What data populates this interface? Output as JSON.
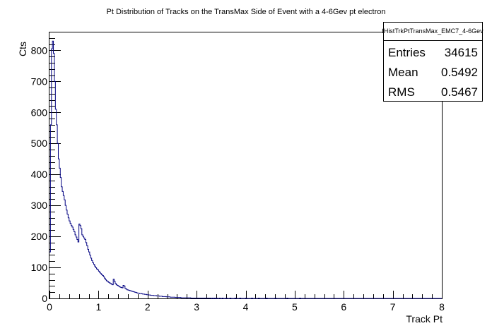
{
  "chart_data": {
    "type": "histogram",
    "title": "Pt Distribution of Tracks on the TransMax Side of Event with a 4-6Gev pt electron",
    "xlabel": "Track Pt",
    "ylabel": "Cts",
    "xlim": [
      0,
      8
    ],
    "ylim": [
      0,
      860
    ],
    "x_ticks": [
      "0",
      "1",
      "2",
      "3",
      "4",
      "5",
      "6",
      "7",
      "8"
    ],
    "y_ticks": [
      "0",
      "100",
      "200",
      "300",
      "400",
      "500",
      "600",
      "700",
      "800"
    ],
    "grid": false,
    "line_color": "#000080",
    "series": [
      {
        "name": "fHistTrkPtTransMax_EMC7_4-6Gev",
        "bin_width": 0.02,
        "x_start": 0.0,
        "values": [
          150,
          560,
          805,
          830,
          790,
          700,
          610,
          560,
          500,
          450,
          420,
          390,
          360,
          345,
          332,
          318,
          300,
          285,
          272,
          260,
          250,
          242,
          235,
          230,
          222,
          215,
          205,
          198,
          190,
          182,
          240,
          235,
          225,
          205,
          200,
          195,
          190,
          180,
          170,
          158,
          150,
          140,
          130,
          122,
          115,
          110,
          104,
          99,
          95,
          92,
          88,
          84,
          80,
          77,
          74,
          70,
          65,
          60,
          57,
          55,
          52,
          50,
          48,
          46,
          44,
          62,
          55,
          48,
          44,
          42,
          40,
          38,
          36,
          35,
          34,
          42,
          40,
          32,
          30,
          28,
          27,
          26,
          25,
          24,
          23,
          22,
          21,
          20,
          19,
          18,
          17,
          17,
          16,
          16,
          15,
          14,
          14,
          13,
          13,
          12,
          12,
          11,
          11,
          10,
          10,
          10,
          9,
          9,
          9,
          8,
          8,
          8,
          7,
          7,
          7,
          6,
          6,
          6,
          6,
          5,
          5,
          5,
          5,
          4,
          4,
          4,
          4,
          4,
          3,
          3,
          3,
          3,
          3,
          3,
          2,
          2,
          2,
          2,
          2,
          2,
          2,
          2,
          2,
          2,
          1,
          1,
          1,
          1,
          1,
          1,
          1,
          1,
          1,
          1,
          1,
          1,
          1,
          1,
          1,
          1,
          1,
          1,
          1,
          1,
          1,
          0,
          1,
          0,
          1,
          0,
          1,
          0,
          0,
          1,
          0,
          0,
          1,
          0,
          0,
          0,
          1,
          0,
          0,
          0,
          1,
          0,
          0,
          0,
          0,
          1,
          0,
          0,
          0,
          0,
          1,
          0,
          0,
          0,
          0,
          0,
          1,
          0,
          0,
          0,
          0,
          0,
          1,
          0,
          0,
          0,
          0,
          0,
          0,
          1,
          0,
          0,
          0,
          0,
          0,
          0,
          0,
          1,
          0,
          0,
          0,
          0,
          0,
          0,
          0,
          0,
          1,
          0,
          0,
          0,
          0,
          0,
          0,
          0,
          0,
          0,
          0,
          0,
          1,
          0,
          0,
          0,
          0,
          0,
          0,
          0,
          0,
          0,
          0,
          0,
          0,
          1,
          0,
          0,
          0,
          0,
          0,
          0,
          0,
          0,
          0,
          0,
          0,
          0,
          0,
          0,
          0,
          0,
          0,
          0,
          0,
          0,
          0,
          0,
          0,
          0,
          0,
          0,
          0,
          0,
          0,
          0,
          0,
          0,
          0,
          0,
          0,
          0,
          0,
          0,
          0,
          0,
          0,
          0,
          0,
          0,
          0,
          0,
          0,
          0,
          0,
          0,
          0,
          0,
          0,
          0,
          0,
          0,
          0,
          0,
          0,
          0,
          0,
          0,
          0,
          0,
          0,
          0,
          0,
          0,
          0,
          0,
          0,
          0,
          0,
          0,
          0,
          0,
          0,
          0,
          0,
          0,
          0,
          0,
          0,
          0,
          0,
          0,
          0,
          0,
          0,
          0,
          0,
          0,
          0,
          0,
          0,
          0,
          0,
          0,
          0,
          0,
          0,
          0,
          0,
          0,
          0,
          0,
          0,
          0,
          0,
          0,
          0,
          0,
          0,
          0,
          0,
          0,
          0,
          0,
          0,
          0,
          0,
          0,
          0,
          0,
          0,
          0,
          0,
          0,
          0,
          0,
          0,
          0,
          0,
          0,
          0,
          0,
          0,
          0,
          0,
          0,
          0,
          0,
          0,
          0
        ]
      }
    ],
    "stats_box": {
      "name": "fHistTrkPtTransMax_EMC7_4-6Gev",
      "rows": [
        {
          "key": "Entries",
          "value": "34615"
        },
        {
          "key": "Mean",
          "value": "0.5492"
        },
        {
          "key": "RMS",
          "value": "0.5467"
        }
      ]
    }
  }
}
